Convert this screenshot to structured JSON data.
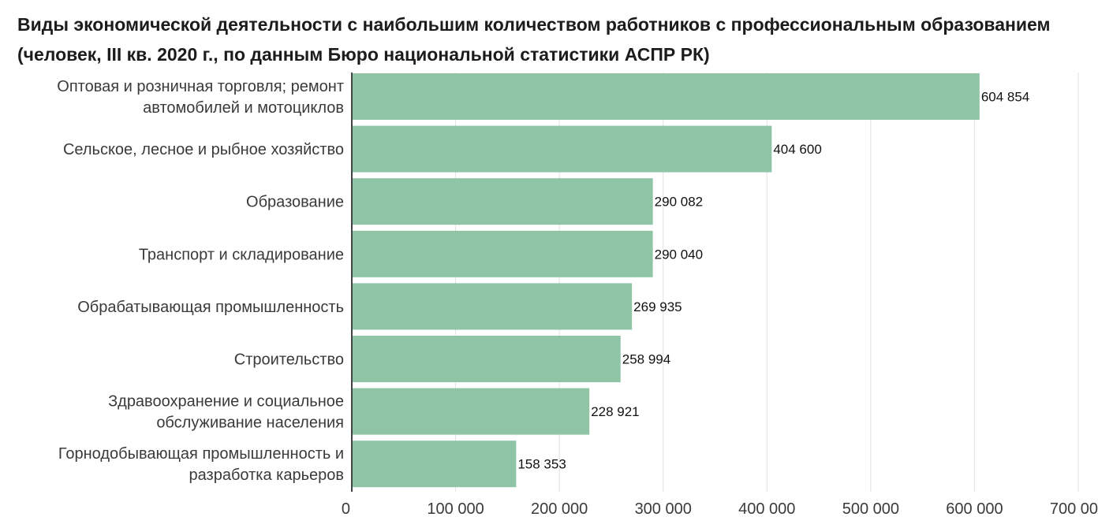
{
  "chart_data": {
    "type": "bar",
    "orientation": "horizontal",
    "title": "Виды экономической деятельности с наибольшим количеством работников с профессиональным образованием (человек, III кв. 2020 г., по данным Бюро национальной статистики АСПР РК)",
    "categories": [
      [
        "Оптовая и розничная торговля; ремонт",
        "автомобилей и мотоциклов"
      ],
      [
        "Сельское, лесное и рыбное хозяйство"
      ],
      [
        "Образование"
      ],
      [
        "Транспорт и складирование"
      ],
      [
        "Обрабатывающая промышленность"
      ],
      [
        "Строительство"
      ],
      [
        "Здравоохранение и социальное",
        "обслуживание населения"
      ],
      [
        "Горнодобывающая промышленность и",
        "разработка карьеров"
      ]
    ],
    "values": [
      604854,
      404600,
      290082,
      290040,
      269935,
      258994,
      228921,
      158353
    ],
    "value_labels": [
      "604 854",
      "404 600",
      "290 082",
      "290 040",
      "269 935",
      "258 994",
      "228 921",
      "158 353"
    ],
    "xlim": [
      0,
      700000
    ],
    "x_ticks": [
      0,
      100000,
      200000,
      300000,
      400000,
      500000,
      600000,
      700000
    ],
    "x_tick_labels": [
      "0",
      "100 000",
      "200 000",
      "300 000",
      "400 000",
      "500 000",
      "600 000",
      "700 000"
    ],
    "grid": true,
    "colors": {
      "bar": "#8fc4a7",
      "grid": "#e2e2e2",
      "axis": "#444444"
    }
  }
}
